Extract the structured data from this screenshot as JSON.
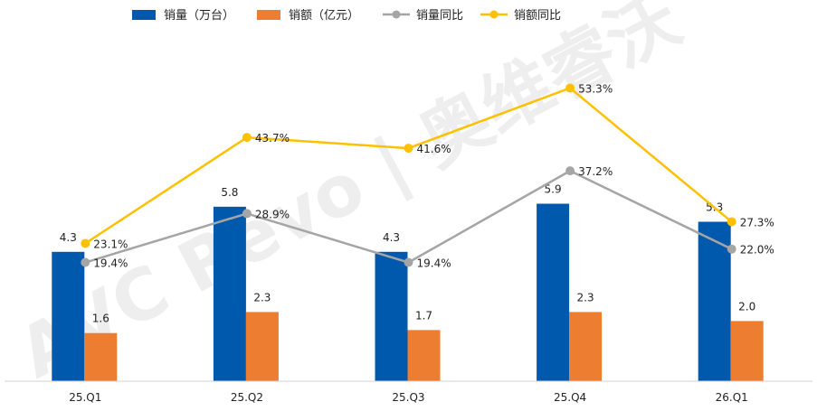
{
  "chart_data": {
    "type": "bar",
    "categories": [
      "25.Q1",
      "25.Q2",
      "25.Q3",
      "25.Q4",
      "26.Q1"
    ],
    "series": [
      {
        "name": "销量（万台）",
        "kind": "bar",
        "color": "#0059AD",
        "values": [
          4.3,
          5.8,
          4.3,
          5.9,
          5.3
        ],
        "labels": [
          "4.3",
          "5.8",
          "4.3",
          "5.9",
          "5.3"
        ]
      },
      {
        "name": "销额（亿元）",
        "kind": "bar",
        "color": "#ED7D31",
        "values": [
          1.6,
          2.3,
          1.7,
          2.3,
          2.0
        ],
        "labels": [
          "1.6",
          "2.3",
          "1.7",
          "2.3",
          "2.0"
        ]
      },
      {
        "name": "销量同比",
        "kind": "line",
        "color": "#A5A5A5",
        "values": [
          19.4,
          28.9,
          19.4,
          37.2,
          22.0
        ],
        "labels": [
          "19.4%",
          "28.9%",
          "19.4%",
          "37.2%",
          "22.0%"
        ]
      },
      {
        "name": "销额同比",
        "kind": "line",
        "color": "#FFC000",
        "values": [
          23.1,
          43.7,
          41.6,
          53.3,
          27.3
        ],
        "labels": [
          "23.1%",
          "43.7%",
          "41.6%",
          "53.3%",
          "27.3%"
        ]
      }
    ],
    "legend_position": "top",
    "grid": false
  },
  "watermark": "AVC Revo | 奥维睿沃"
}
